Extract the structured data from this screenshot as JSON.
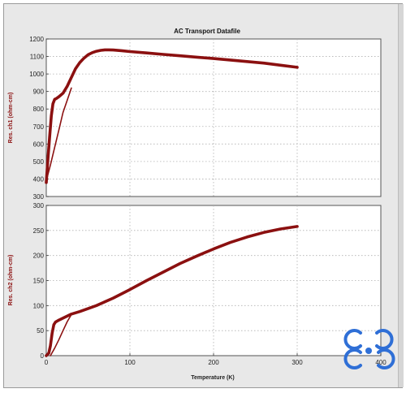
{
  "chart_data": [
    {
      "type": "line",
      "title": "AC Transport Datafile",
      "xlabel": "",
      "ylabel": "Res. ch1 (ohm-cm)",
      "xlim": [
        0,
        400
      ],
      "ylim": [
        300,
        1200
      ],
      "grid": true,
      "xticks": [],
      "yticks": [
        300,
        400,
        500,
        600,
        700,
        800,
        900,
        1000,
        1100,
        1200
      ],
      "color": "#8b1010",
      "series": [
        {
          "x": [
            0,
            2,
            4,
            6,
            8,
            10,
            12,
            15,
            20,
            25,
            30,
            35,
            40,
            45,
            50,
            55,
            60,
            65,
            70,
            75,
            80,
            90,
            100,
            120,
            140,
            160,
            180,
            200,
            220,
            240,
            260,
            280,
            300
          ],
          "y": [
            380,
            520,
            640,
            760,
            830,
            855,
            860,
            870,
            890,
            930,
            980,
            1030,
            1065,
            1090,
            1110,
            1122,
            1130,
            1135,
            1138,
            1138,
            1137,
            1133,
            1128,
            1120,
            1112,
            1104,
            1096,
            1088,
            1080,
            1071,
            1062,
            1050,
            1038
          ]
        },
        {
          "x": [
            0,
            5,
            10,
            15,
            20,
            25,
            30
          ],
          "y": [
            390,
            480,
            580,
            680,
            780,
            850,
            920
          ]
        }
      ]
    },
    {
      "type": "line",
      "title": "",
      "xlabel": "Temperature (K)",
      "ylabel": "Res. ch2 (ohm-cm)",
      "xlim": [
        0,
        400
      ],
      "ylim": [
        0,
        300
      ],
      "grid": true,
      "xticks": [
        0,
        100,
        200,
        300,
        400
      ],
      "yticks": [
        0,
        50,
        100,
        150,
        200,
        250,
        300
      ],
      "color": "#8b1010",
      "series": [
        {
          "x": [
            0,
            3,
            5,
            7,
            9,
            11,
            13,
            15,
            20,
            30,
            40,
            60,
            80,
            100,
            120,
            140,
            160,
            180,
            200,
            220,
            240,
            260,
            280,
            300
          ],
          "y": [
            0,
            5,
            20,
            45,
            62,
            67,
            69,
            71,
            75,
            83,
            88,
            100,
            115,
            132,
            150,
            167,
            184,
            199,
            213,
            226,
            237,
            246,
            253,
            258
          ]
        },
        {
          "x": [
            5,
            10,
            15,
            20,
            25,
            30
          ],
          "y": [
            0,
            15,
            32,
            50,
            68,
            82
          ]
        }
      ]
    }
  ]
}
